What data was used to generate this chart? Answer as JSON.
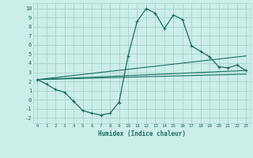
{
  "xlabel": "Humidex (Indice chaleur)",
  "background_color": "#cceee8",
  "grid_color": "#aad8d0",
  "line_color": "#1a6e60",
  "xlim": [
    -0.5,
    23.5
  ],
  "ylim": [
    -2.6,
    10.6
  ],
  "xticks": [
    0,
    1,
    2,
    3,
    4,
    5,
    6,
    7,
    8,
    9,
    10,
    11,
    12,
    13,
    14,
    15,
    16,
    17,
    18,
    19,
    20,
    21,
    22,
    23
  ],
  "yticks": [
    -2,
    -1,
    0,
    1,
    2,
    3,
    4,
    5,
    6,
    7,
    8,
    9,
    10
  ],
  "series1_x": [
    0,
    1,
    2,
    3,
    4,
    5,
    6,
    7,
    8,
    9,
    10,
    11,
    12,
    13,
    14,
    15,
    16,
    17,
    18,
    19,
    20,
    21,
    22,
    23
  ],
  "series1_y": [
    2.2,
    1.7,
    1.1,
    0.8,
    -0.2,
    -1.2,
    -1.5,
    -1.7,
    -1.5,
    -0.3,
    4.8,
    8.6,
    10.0,
    9.5,
    7.8,
    9.3,
    8.8,
    5.9,
    5.3,
    4.7,
    3.6,
    3.5,
    3.8,
    3.2
  ],
  "series2_x": [
    0,
    23
  ],
  "series2_y": [
    2.2,
    3.2
  ],
  "series3_x": [
    0,
    23
  ],
  "series3_y": [
    2.2,
    2.8
  ],
  "series4_x": [
    0,
    23
  ],
  "series4_y": [
    2.2,
    4.8
  ]
}
